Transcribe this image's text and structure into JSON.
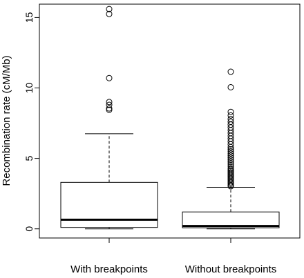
{
  "chart_data": {
    "type": "boxplot",
    "title": "",
    "xlabel": "",
    "ylabel": "Recombination rate (cM/Mb)",
    "ylim": [
      -0.65,
      15.95
    ],
    "yticks": [
      0,
      5,
      10,
      15
    ],
    "ytick_labels": [
      "0",
      "5",
      "10",
      "15"
    ],
    "grid": false,
    "legend": "none",
    "categories": [
      "With breakpoints",
      "Without breakpoints"
    ],
    "boxes": [
      {
        "name": "With breakpoints",
        "whisker_low": 0.0,
        "q1": 0.1,
        "median": 0.65,
        "q3": 3.3,
        "whisker_high": 6.75,
        "outliers": [
          8.45,
          8.55,
          8.8,
          9.0,
          10.7,
          15.25,
          15.6
        ]
      },
      {
        "name": "Without breakpoints",
        "whisker_low": 0.0,
        "q1": 0.07,
        "median": 0.2,
        "q3": 1.2,
        "whisker_high": 2.95,
        "outliers": [
          3.02,
          3.1,
          3.2,
          3.3,
          3.4,
          3.5,
          3.6,
          3.7,
          3.8,
          3.9,
          4.0,
          4.1,
          4.2,
          4.3,
          4.45,
          4.6,
          4.75,
          4.9,
          5.05,
          5.2,
          5.35,
          5.5,
          5.65,
          5.8,
          6.0,
          6.2,
          6.4,
          6.6,
          6.8,
          7.0,
          7.2,
          7.4,
          7.6,
          7.8,
          8.05,
          8.3,
          10.05,
          11.15
        ]
      }
    ]
  }
}
